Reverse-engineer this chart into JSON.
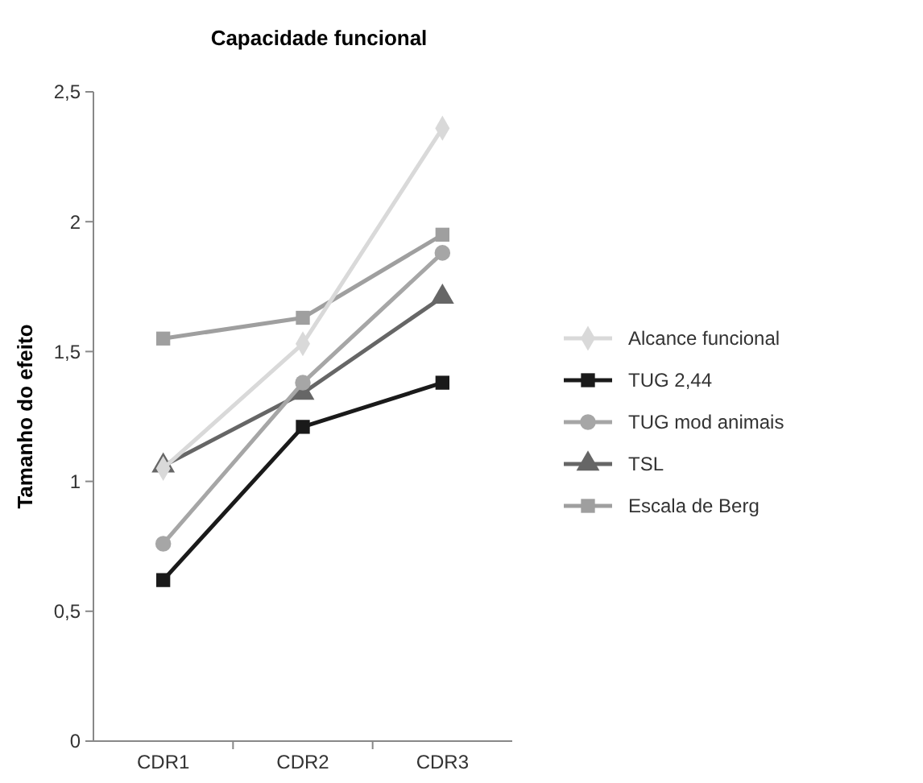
{
  "chart_data": {
    "type": "line",
    "title": "Capacidade funcional",
    "ylabel": "Tamanho do efeito",
    "categories": [
      "CDR1",
      "CDR2",
      "CDR3"
    ],
    "ylim": [
      0,
      2.5
    ],
    "yticks": [
      0,
      {
        "value": 0.5,
        "label": "0,5"
      },
      1,
      {
        "value": 1.5,
        "label": "1,5"
      },
      2,
      {
        "value": 2.5,
        "label": "2,5"
      }
    ],
    "grid": false,
    "legend": "right",
    "line_style": "solid",
    "series": [
      {
        "name": "Alcance funcional",
        "color": "#d9d9d9",
        "marker": "diamond",
        "values": [
          1.05,
          1.53,
          2.36
        ]
      },
      {
        "name": "TUG 2,44",
        "color": "#1a1a1a",
        "marker": "square",
        "values": [
          0.62,
          1.21,
          1.38
        ]
      },
      {
        "name": "TUG mod animais",
        "color": "#a6a6a6",
        "marker": "circle",
        "values": [
          0.76,
          1.38,
          1.88
        ]
      },
      {
        "name": "TSL",
        "color": "#666666",
        "marker": "triangle",
        "values": [
          1.06,
          1.34,
          1.71
        ]
      },
      {
        "name": "Escala de Berg",
        "color": "#9f9f9f",
        "marker": "square",
        "values": [
          1.55,
          1.63,
          1.95
        ]
      }
    ]
  }
}
